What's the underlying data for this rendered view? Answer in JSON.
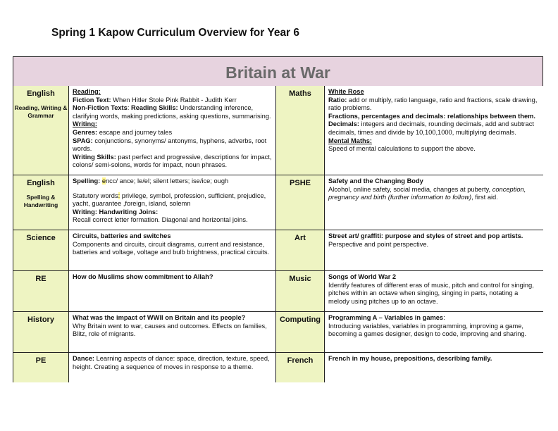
{
  "document": {
    "title": "Spring 1 Kapow Curriculum Overview for Year 6"
  },
  "banner": {
    "title": "Britain at War"
  },
  "colors": {
    "banner_bg": "#e7d3df",
    "subject_bg": "#eef4c2",
    "highlight": "#fff58a"
  },
  "rows": [
    {
      "left": {
        "subject": "English",
        "subtitle": "Reading, Writing & Grammar",
        "content": [
          [
            {
              "t": "Reading:",
              "b": 1,
              "u": 1
            }
          ],
          [
            {
              "t": "Fiction Text: ",
              "b": 1
            },
            {
              "t": "When Hitler Stole Pink Rabbit - Judith Kerr"
            }
          ],
          [
            {
              "t": "Non-Fiction Texts",
              "b": 1
            },
            {
              "t": ": "
            },
            {
              "t": "Reading Skills: ",
              "b": 1
            },
            {
              "t": "Understanding inference, clarifying words, making predictions, asking questions, summarising."
            }
          ],
          [
            {
              "t": "Writing:",
              "b": 1,
              "u": 1
            }
          ],
          [
            {
              "t": "Genres: ",
              "b": 1
            },
            {
              "t": "escape and journey tales"
            }
          ],
          [
            {
              "t": "SPAG: ",
              "b": 1
            },
            {
              "t": "conjunctions, synonyms/ antonyms, hyphens, adverbs, root words."
            }
          ],
          [
            {
              "t": "Writing Skills: ",
              "b": 1
            },
            {
              "t": "past perfect and progressive, descriptions for impact, colons/ semi-solons, words for impact, noun phrases."
            }
          ]
        ]
      },
      "right": {
        "subject": "Maths",
        "content": [
          [
            {
              "t": "White Rose",
              "b": 1,
              "u": 1
            }
          ],
          [
            {
              "t": "Ratio: ",
              "b": 1
            },
            {
              "t": "add or multiply, ratio language, ratio and fractions, scale drawing, ratio problems."
            }
          ],
          [
            {
              "t": "Fractions, percentages and decimals: relationships between them.",
              "b": 1
            }
          ],
          [
            {
              "t": "Decimals: ",
              "b": 1
            },
            {
              "t": "integers and decimals, rounding decimals, add and subtract decimals, times and divide  by 10,100,1000, multiplying decimals."
            }
          ],
          [
            {
              "t": "Mental Maths:",
              "b": 1,
              "u": 1
            }
          ],
          [
            {
              "t": "Speed of mental calculations to support the above."
            }
          ]
        ]
      }
    },
    {
      "left": {
        "subject": "English",
        "subtitle": "Spelling & Handwriting",
        "content": [
          [
            {
              "t": "Spelling: ",
              "b": 1
            },
            {
              "t": "e",
              "hl": 1
            },
            {
              "t": "ncc/ ance; le/el; silent letters; ise/ice; ough"
            }
          ],
          "gap",
          [
            {
              "t": "Statutory words"
            },
            {
              "t": ":",
              "hl": 1
            },
            {
              "t": " privilege, symbol, profession, sufficient, prejudice, yacht, guarantee ,foreign, island, solemn"
            }
          ],
          [
            {
              "t": "Writing: Handwriting Joins:",
              "b": 1
            }
          ],
          [
            {
              "t": "Recall correct letter formation. Diagonal and horizontal joins."
            }
          ]
        ]
      },
      "right": {
        "subject": "PSHE",
        "content": [
          [
            {
              "t": "Safety and the Changing Body",
              "b": 1
            }
          ],
          [
            {
              "t": "Alcohol, online safety, social media, changes at puberty, "
            },
            {
              "t": "conception, pregnancy and birth (further information to follow)",
              "i": 1
            },
            {
              "t": ", first aid."
            }
          ]
        ]
      }
    },
    {
      "left": {
        "subject": "Science",
        "content": [
          [
            {
              "t": "Circuits, batteries and switches",
              "b": 1
            }
          ],
          [
            {
              "t": "Components and circuits, circuit diagrams, current and resistance, batteries and voltage, voltage and bulb brightness, practical circuits."
            }
          ]
        ]
      },
      "right": {
        "subject": "Art",
        "content": [
          [
            {
              "t": "Street art/ graffiti: purpose and styles of street and pop artists.",
              "b": 1
            }
          ],
          [
            {
              "t": "Perspective and point perspective."
            }
          ]
        ]
      }
    },
    {
      "left": {
        "subject": "RE",
        "content": [
          [
            {
              "t": "How do Muslims show commitment to Allah?",
              "b": 1
            }
          ]
        ]
      },
      "right": {
        "subject": "Music",
        "content": [
          [
            {
              "t": "Songs of World War 2",
              "b": 1
            }
          ],
          [
            {
              "t": "Identify features of different eras of music, pitch and control for singing,  pitches within an octave when singing, singing in parts, notating a melody using pitches up to an octave."
            }
          ]
        ]
      }
    },
    {
      "left": {
        "subject": "History",
        "content": [
          [
            {
              "t": "What was the impact of WWII on Britain and its people?",
              "b": 1
            }
          ],
          [
            {
              "t": "Why Britain went to war, causes and outcomes. Effects on families, Blitz, role of migrants."
            }
          ]
        ]
      },
      "right": {
        "subject": "Computing",
        "content": [
          [
            {
              "t": "Programming A – Variables in games",
              "b": 1
            },
            {
              "t": ":"
            }
          ],
          [
            {
              "t": "Introducing variables, variables in programming,  improving a game, becoming a games designer, design to code, improving and sharing."
            }
          ]
        ]
      }
    },
    {
      "left": {
        "subject": "PE",
        "content": [
          [
            {
              "t": "Dance: ",
              "b": 1
            },
            {
              "t": "Learning aspects of dance: space, direction, texture, speed, height. Creating a sequence of moves in response to a theme."
            }
          ]
        ]
      },
      "right": {
        "subject": "French",
        "content": [
          [
            {
              "t": "French in my house, prepositions, describing family.",
              "b": 1
            }
          ]
        ]
      }
    }
  ]
}
